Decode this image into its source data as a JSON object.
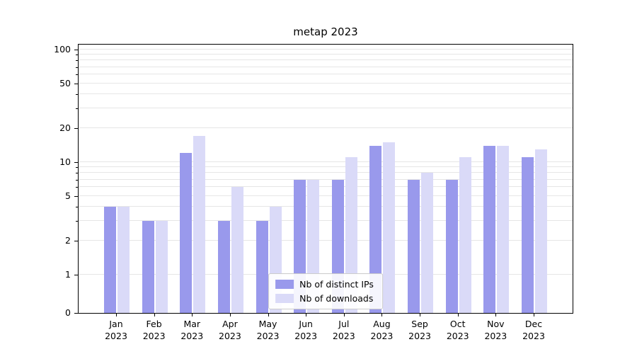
{
  "title": "metap 2023",
  "chart_data": {
    "type": "bar",
    "title": "metap 2023",
    "yscale": "symlog",
    "grid": true,
    "legend_position": "lower center",
    "ylabel": "",
    "xlabel": "",
    "y_ticks": [
      0,
      1,
      2,
      5,
      10,
      20,
      50,
      100
    ],
    "minor_grid_values": [
      1,
      2,
      3,
      4,
      5,
      6,
      7,
      8,
      9,
      10,
      20,
      30,
      40,
      50,
      60,
      70,
      80,
      90,
      100
    ],
    "ylim": [
      0,
      110
    ],
    "categories": [
      "Jan 2023",
      "Feb 2023",
      "Mar 2023",
      "Apr 2023",
      "May 2023",
      "Jun 2023",
      "Jul 2023",
      "Aug 2023",
      "Sep 2023",
      "Oct 2023",
      "Nov 2023",
      "Dec 2023"
    ],
    "series": [
      {
        "name": "Nb of distinct IPs",
        "color": "#9999ec",
        "values": [
          4,
          3,
          12,
          3,
          3,
          7,
          7,
          14,
          7,
          7,
          14,
          11
        ]
      },
      {
        "name": "Nb of downloads",
        "color": "#dadaf8",
        "values": [
          4,
          3,
          17,
          6,
          4,
          7,
          11,
          15,
          8,
          11,
          14,
          13
        ]
      }
    ]
  }
}
